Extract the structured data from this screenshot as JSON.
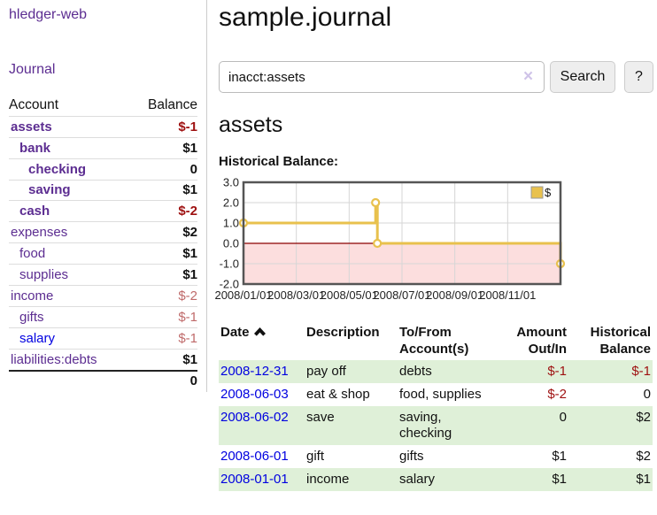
{
  "sidebar": {
    "brand": "hledger-web",
    "journal_link": "Journal",
    "accounts": {
      "headers": {
        "account": "Account",
        "balance": "Balance"
      },
      "rows": [
        {
          "name": "assets",
          "balance": "$-1",
          "indent": 0,
          "bold": true,
          "neg": "strong"
        },
        {
          "name": "bank",
          "balance": "$1",
          "indent": 1,
          "bold": true,
          "neg": null
        },
        {
          "name": "checking",
          "balance": "0",
          "indent": 2,
          "bold": true,
          "neg": null
        },
        {
          "name": "saving",
          "balance": "$1",
          "indent": 2,
          "bold": true,
          "neg": null
        },
        {
          "name": "cash",
          "balance": "$-2",
          "indent": 1,
          "bold": true,
          "neg": "strong"
        },
        {
          "name": "expenses",
          "balance": "$2",
          "indent": 0,
          "bold": false,
          "neg": null
        },
        {
          "name": "food",
          "balance": "$1",
          "indent": 1,
          "bold": false,
          "neg": null
        },
        {
          "name": "supplies",
          "balance": "$1",
          "indent": 1,
          "bold": false,
          "neg": null
        },
        {
          "name": "income",
          "balance": "$-2",
          "indent": 0,
          "bold": false,
          "neg": "soft"
        },
        {
          "name": "gifts",
          "balance": "$-1",
          "indent": 1,
          "bold": false,
          "neg": "soft"
        },
        {
          "name": "salary",
          "balance": "$-1",
          "indent": 1,
          "bold": false,
          "neg": "soft",
          "blue": true
        },
        {
          "name": "liabilities:debts",
          "balance": "$1",
          "indent": 0,
          "bold": false,
          "neg": null
        }
      ],
      "total": "0"
    }
  },
  "main": {
    "title": "sample.journal",
    "search": {
      "value": "inacct:assets",
      "clear_icon": "×",
      "search_button": "Search",
      "help_button": "?"
    },
    "account_heading": "assets",
    "chart_heading": "Historical Balance:"
  },
  "chart_data": {
    "type": "line",
    "title": "Historical Balance",
    "step": true,
    "x_range_months": 12,
    "x_ticks": [
      "2008/01/01",
      "2008/03/01",
      "2008/05/01",
      "2008/07/01",
      "2008/09/01",
      "2008/11/01"
    ],
    "y_ticks": [
      "3.0",
      "2.0",
      "1.0",
      "0.0",
      "-1.0",
      "-2.0"
    ],
    "ylim": [
      -2,
      3
    ],
    "series": [
      {
        "name": "$",
        "points": [
          {
            "date": "2008-01-01",
            "value": 1
          },
          {
            "date": "2008-06-01",
            "value": 2
          },
          {
            "date": "2008-06-03",
            "value": 0
          },
          {
            "date": "2008-12-31",
            "value": -1
          }
        ]
      }
    ],
    "legend": {
      "label": "$",
      "position": "top-right",
      "swatch": "square"
    },
    "colors": {
      "line": "#e8c14d",
      "marker_fill": "#ffffff",
      "negative_area": "#fcdede",
      "zero_line": "#8b0000",
      "grid": "#d6d6d6",
      "border": "#555555"
    }
  },
  "register": {
    "sort_icon": "chevron-up",
    "headers": {
      "date": "Date",
      "description": "Description",
      "accounts": "To/From\nAccount(s)",
      "amount": "Amount\nOut/In",
      "balance": "Historical\nBalance"
    },
    "rows": [
      {
        "date": "2008-12-31",
        "description": "pay off",
        "accounts": "debts",
        "amount": "$-1",
        "balance": "$-1",
        "amount_neg": true,
        "balance_neg": true
      },
      {
        "date": "2008-06-03",
        "description": "eat & shop",
        "accounts": "food, supplies",
        "amount": "$-2",
        "balance": "0",
        "amount_neg": true,
        "balance_neg": false
      },
      {
        "date": "2008-06-02",
        "description": "save",
        "accounts": "saving,\nchecking",
        "amount": "0",
        "balance": "$2",
        "amount_neg": false,
        "balance_neg": false
      },
      {
        "date": "2008-06-01",
        "description": "gift",
        "accounts": "gifts",
        "amount": "$1",
        "balance": "$2",
        "amount_neg": false,
        "balance_neg": false
      },
      {
        "date": "2008-01-01",
        "description": "income",
        "accounts": "salary",
        "amount": "$1",
        "balance": "$1",
        "amount_neg": false,
        "balance_neg": false
      }
    ]
  }
}
